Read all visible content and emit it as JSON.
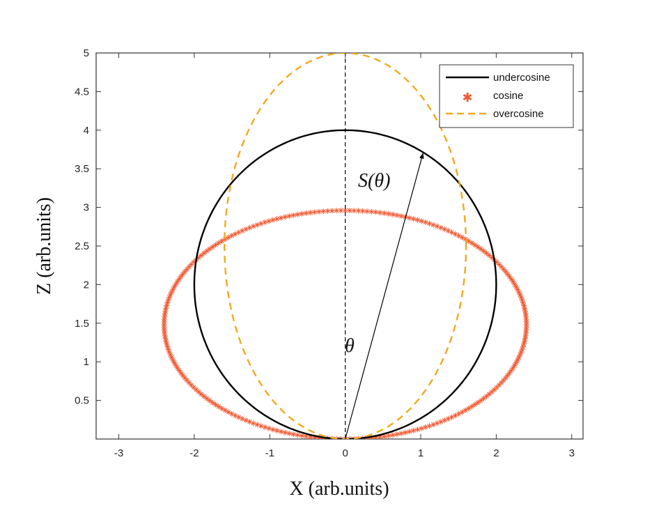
{
  "chart_data": {
    "type": "line",
    "xlabel": "X (arb.units)",
    "ylabel": "Z (arb.units)",
    "xlim": [
      -3.3,
      3.15
    ],
    "ylim": [
      0,
      5
    ],
    "xticks": [
      "-3",
      "-2",
      "-1",
      "0",
      "1",
      "2",
      "3"
    ],
    "yticks": [
      "0.5",
      "1",
      "1.5",
      "2",
      "2.5",
      "3",
      "3.5",
      "4",
      "4.5",
      "5"
    ],
    "grid": false,
    "legend_position": "top-right",
    "series": [
      {
        "name": "undercosine",
        "shape": "ellipse",
        "center": [
          0,
          2
        ],
        "semi_axes": [
          2,
          2
        ],
        "color": "#000000",
        "style": "solid"
      },
      {
        "name": "cosine",
        "shape": "ellipse",
        "center": [
          0,
          1.48
        ],
        "semi_axes": [
          2.4,
          1.48
        ],
        "color": "#f05a32",
        "style": "asterisk-markers"
      },
      {
        "name": "overcosine",
        "shape": "ellipse",
        "center": [
          0,
          2.5
        ],
        "semi_axes": [
          1.6,
          2.5
        ],
        "color": "#f0a91e",
        "style": "dashed"
      }
    ],
    "annotations": {
      "vertical_dashed_line": {
        "x": 0,
        "y_from": 0,
        "y_to": 5
      },
      "arrow": {
        "from": [
          0,
          0
        ],
        "to": [
          1.03,
          3.7
        ]
      },
      "arrow_label": "S(θ)",
      "angle_label": "θ"
    }
  }
}
